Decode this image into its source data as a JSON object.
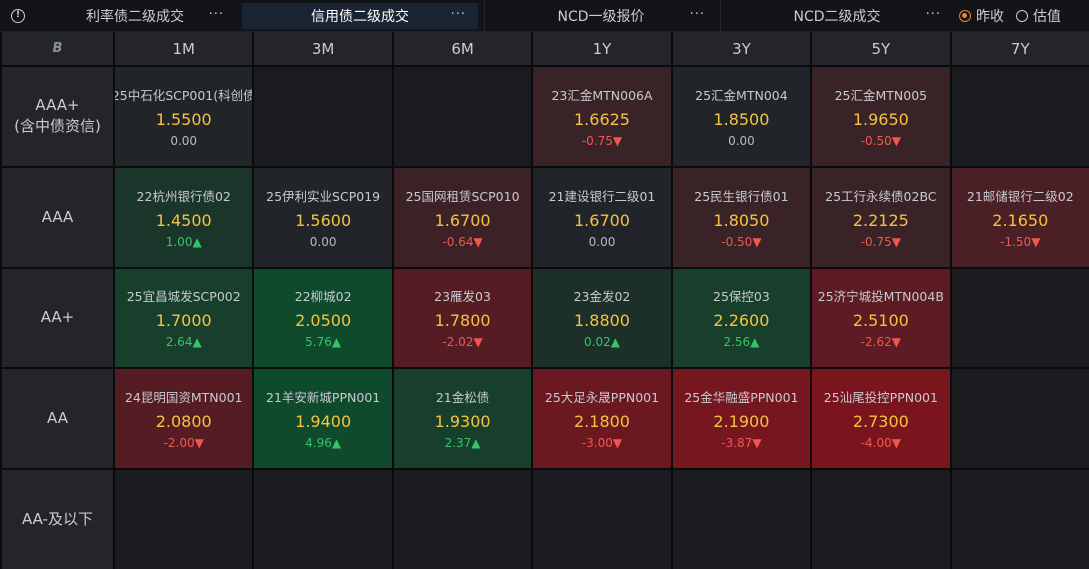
{
  "tabs": [
    {
      "label": "利率债二级成交",
      "more": "···",
      "active": false
    },
    {
      "label": "信用债二级成交",
      "more": "···",
      "active": true
    },
    {
      "label": "NCD一级报价",
      "more": "···",
      "active": false
    },
    {
      "label": "NCD二级成交",
      "more": "···",
      "active": false
    }
  ],
  "radio": {
    "options": [
      {
        "label": "昨收",
        "checked": true
      },
      {
        "label": "估值",
        "checked": false
      }
    ]
  },
  "grid": {
    "corner": "B",
    "columns": [
      "1M",
      "3M",
      "6M",
      "1Y",
      "3Y",
      "5Y",
      "7Y"
    ],
    "rows": [
      {
        "label_line1": "AAA+",
        "label_line2": "(含中债资信)",
        "cells": [
          {
            "name": "25中石化SCP001(科创债",
            "yield": "1.5500",
            "change": "0.00",
            "dir": "flat",
            "bg": "#212429"
          },
          null,
          null,
          {
            "name": "23汇金MTN006A",
            "yield": "1.6625",
            "change": "-0.75",
            "arrow": "▼",
            "dir": "down",
            "bg": "#3a2327"
          },
          {
            "name": "25汇金MTN004",
            "yield": "1.8500",
            "change": "0.00",
            "dir": "flat",
            "bg": "#212429"
          },
          {
            "name": "25汇金MTN005",
            "yield": "1.9650",
            "change": "-0.50",
            "arrow": "▼",
            "dir": "down",
            "bg": "#3a2327"
          },
          null
        ]
      },
      {
        "label_line1": "AAA",
        "label_line2": "",
        "cells": [
          {
            "name": "22杭州银行债02",
            "yield": "1.4500",
            "change": "1.00",
            "arrow": "▲",
            "dir": "up",
            "bg": "#1a362b"
          },
          {
            "name": "25伊利实业SCP019",
            "yield": "1.5600",
            "change": "0.00",
            "dir": "flat",
            "bg": "#212429"
          },
          {
            "name": "25国网租赁SCP010",
            "yield": "1.6700",
            "change": "-0.64",
            "arrow": "▼",
            "dir": "down",
            "bg": "#3c2227"
          },
          {
            "name": "21建设银行二级01",
            "yield": "1.6700",
            "change": "0.00",
            "dir": "flat",
            "bg": "#212429"
          },
          {
            "name": "25民生银行债01",
            "yield": "1.8050",
            "change": "-0.50",
            "arrow": "▼",
            "dir": "down",
            "bg": "#3a2327"
          },
          {
            "name": "25工行永续债02BC",
            "yield": "2.2125",
            "change": "-0.75",
            "arrow": "▼",
            "dir": "down",
            "bg": "#3a2327"
          },
          {
            "name": "21邮储银行二级02",
            "yield": "2.1650",
            "change": "-1.50",
            "arrow": "▼",
            "dir": "down",
            "bg": "#4a1f25"
          }
        ]
      },
      {
        "label_line1": "AA+",
        "label_line2": "",
        "cells": [
          {
            "name": "25宜昌城发SCP002",
            "yield": "1.7000",
            "change": "2.64",
            "arrow": "▲",
            "dir": "up",
            "bg": "#173f2c"
          },
          {
            "name": "22柳城02",
            "yield": "2.0500",
            "change": "5.76",
            "arrow": "▲",
            "dir": "up",
            "bg": "#0f4a2d"
          },
          {
            "name": "23雁发03",
            "yield": "1.7800",
            "change": "-2.02",
            "arrow": "▼",
            "dir": "down",
            "bg": "#561c24"
          },
          {
            "name": "23金发02",
            "yield": "1.8800",
            "change": "0.02",
            "arrow": "▲",
            "dir": "up",
            "bg": "#1c2f28"
          },
          {
            "name": "25保控03",
            "yield": "2.2600",
            "change": "2.56",
            "arrow": "▲",
            "dir": "up",
            "bg": "#173f2c"
          },
          {
            "name": "25济宁城投MTN004B",
            "yield": "2.5100",
            "change": "-2.62",
            "arrow": "▼",
            "dir": "down",
            "bg": "#5d1b24"
          },
          null
        ]
      },
      {
        "label_line1": "AA",
        "label_line2": "",
        "cells": [
          {
            "name": "24昆明国资MTN001",
            "yield": "2.0800",
            "change": "-2.00",
            "arrow": "▼",
            "dir": "down",
            "bg": "#561c24"
          },
          {
            "name": "21羊安新城PPN001",
            "yield": "1.9400",
            "change": "4.96",
            "arrow": "▲",
            "dir": "up",
            "bg": "#104a2d"
          },
          {
            "name": "21金松债",
            "yield": "1.9300",
            "change": "2.37",
            "arrow": "▲",
            "dir": "up",
            "bg": "#173f2c"
          },
          {
            "name": "25大足永晟PPN001",
            "yield": "2.1800",
            "change": "-3.00",
            "arrow": "▼",
            "dir": "down",
            "bg": "#6b1821"
          },
          {
            "name": "25金华融盛PPN001",
            "yield": "2.1900",
            "change": "-3.87",
            "arrow": "▼",
            "dir": "down",
            "bg": "#76161f"
          },
          {
            "name": "25汕尾投控PPN001",
            "yield": "2.7300",
            "change": "-4.00",
            "arrow": "▼",
            "dir": "down",
            "bg": "#7a151e"
          },
          null
        ]
      },
      {
        "label_line1": "AA-及以下",
        "label_line2": "",
        "cells": [
          null,
          null,
          null,
          null,
          null,
          null,
          null
        ]
      }
    ]
  }
}
